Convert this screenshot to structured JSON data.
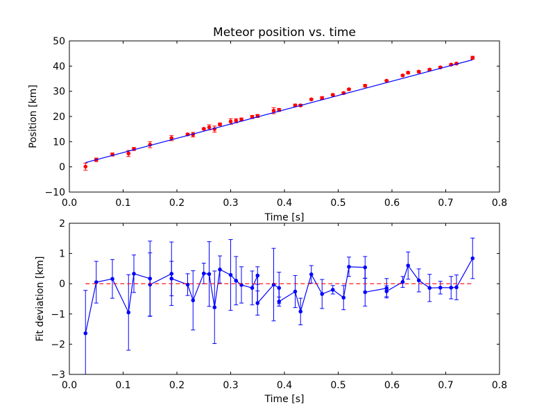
{
  "colors": {
    "figure_bg": "#ffffff",
    "axes_edge": "#000000",
    "data_marker": "#ff0000",
    "fit_line": "#0000ff",
    "deviation_line": "#0000ff",
    "zero_line": "#ff0000"
  },
  "chart_data": [
    {
      "type": "scatter",
      "title": "Meteor position vs. time",
      "xlabel": "Time [s]",
      "ylabel": "Position [km]",
      "xlim": [
        0.0,
        0.8
      ],
      "ylim": [
        -10,
        50
      ],
      "xticks": [
        "0.0",
        "0.1",
        "0.2",
        "0.3",
        "0.4",
        "0.5",
        "0.6",
        "0.7",
        "0.8"
      ],
      "yticks": [
        "−10",
        "0",
        "10",
        "20",
        "30",
        "40",
        "50"
      ],
      "grid": false,
      "series": [
        {
          "kind": "errorbar-points",
          "color": "#ff0000",
          "x": [
            0.03,
            0.05,
            0.08,
            0.11,
            0.12,
            0.15,
            0.19,
            0.22,
            0.23,
            0.25,
            0.26,
            0.27,
            0.28,
            0.3,
            0.31,
            0.32,
            0.34,
            0.35,
            0.38,
            0.39,
            0.42,
            0.43,
            0.45,
            0.47,
            0.49,
            0.51,
            0.52,
            0.55,
            0.59,
            0.62,
            0.63,
            0.65,
            0.67,
            0.69,
            0.71,
            0.72,
            0.75
          ],
          "y": [
            0.1,
            2.8,
            4.9,
            5.3,
            7.1,
            8.8,
            11.4,
            12.9,
            12.8,
            15.1,
            15.7,
            15.0,
            16.9,
            18.0,
            18.3,
            18.8,
            19.8,
            20.2,
            22.3,
            22.6,
            24.4,
            24.4,
            26.8,
            27.3,
            28.6,
            29.3,
            30.8,
            32.2,
            34.2,
            36.3,
            37.4,
            37.8,
            38.6,
            39.5,
            40.6,
            41.0,
            43.3
          ],
          "yerr": [
            1.4,
            0.7,
            0.6,
            1.2,
            0.6,
            1.2,
            1.0,
            0.4,
            0.9,
            0.3,
            1.0,
            1.2,
            0.5,
            1.1,
            0.8,
            0.6,
            0.6,
            0.6,
            1.2,
            0.6,
            0.5,
            0.4,
            0.3,
            0.6,
            0.3,
            0.4,
            0.3,
            0.5,
            0.2,
            0.3,
            0.4,
            0.4,
            0.4,
            0.3,
            0.3,
            0.3,
            0.6
          ]
        },
        {
          "kind": "line",
          "color": "#0000ff",
          "x": [
            0.03,
            0.75
          ],
          "y": [
            1.7,
            42.5
          ]
        }
      ]
    },
    {
      "type": "line",
      "title": "",
      "xlabel": "Time [s]",
      "ylabel": "Fit deviation [km]",
      "xlim": [
        0.0,
        0.8
      ],
      "ylim": [
        -3,
        2
      ],
      "xticks": [
        "0.0",
        "0.1",
        "0.2",
        "0.3",
        "0.4",
        "0.5",
        "0.6",
        "0.7",
        "0.8"
      ],
      "yticks": [
        "−3",
        "−2",
        "−1",
        "0",
        "1",
        "2"
      ],
      "grid": false,
      "series": [
        {
          "kind": "errorbar-line",
          "color": "#0000ff",
          "x": [
            0.03,
            0.05,
            0.08,
            0.11,
            0.12,
            0.15,
            0.15,
            0.19,
            0.19,
            0.22,
            0.23,
            0.25,
            0.26,
            0.27,
            0.28,
            0.3,
            0.31,
            0.32,
            0.34,
            0.35,
            0.35,
            0.38,
            0.39,
            0.39,
            0.42,
            0.43,
            0.45,
            0.47,
            0.49,
            0.51,
            0.52,
            0.55,
            0.55,
            0.59,
            0.59,
            0.62,
            0.63,
            0.65,
            0.67,
            0.69,
            0.71,
            0.72,
            0.75
          ],
          "y": [
            -1.64,
            0.05,
            0.16,
            -0.95,
            0.33,
            0.17,
            -0.03,
            0.33,
            0.17,
            -0.03,
            -0.55,
            0.34,
            0.32,
            -0.78,
            0.47,
            0.29,
            0.1,
            -0.04,
            -0.14,
            0.27,
            -0.64,
            -0.03,
            -0.14,
            -0.59,
            -0.26,
            -0.92,
            0.31,
            -0.34,
            -0.2,
            -0.46,
            0.56,
            0.54,
            -0.28,
            -0.15,
            -0.25,
            0.06,
            0.6,
            0.11,
            -0.14,
            -0.13,
            -0.13,
            -0.12,
            0.84
          ],
          "yerr": [
            1.42,
            0.69,
            0.64,
            1.25,
            0.62,
            1.24,
            1.05,
            1.05,
            0.57,
            0.36,
            0.98,
            0.34,
            1.07,
            1.2,
            0.45,
            1.17,
            0.8,
            0.6,
            0.56,
            0.29,
            0.4,
            1.2,
            0.52,
            0.15,
            0.53,
            0.44,
            0.29,
            0.48,
            0.14,
            0.4,
            0.32,
            0.36,
            0.46,
            0.32,
            0.18,
            0.18,
            0.45,
            0.38,
            0.45,
            0.21,
            0.37,
            0.41,
            0.67
          ]
        },
        {
          "kind": "dashed-line",
          "color": "#ff0000",
          "x": [
            0.03,
            0.75
          ],
          "y": [
            0,
            0
          ]
        }
      ]
    }
  ]
}
